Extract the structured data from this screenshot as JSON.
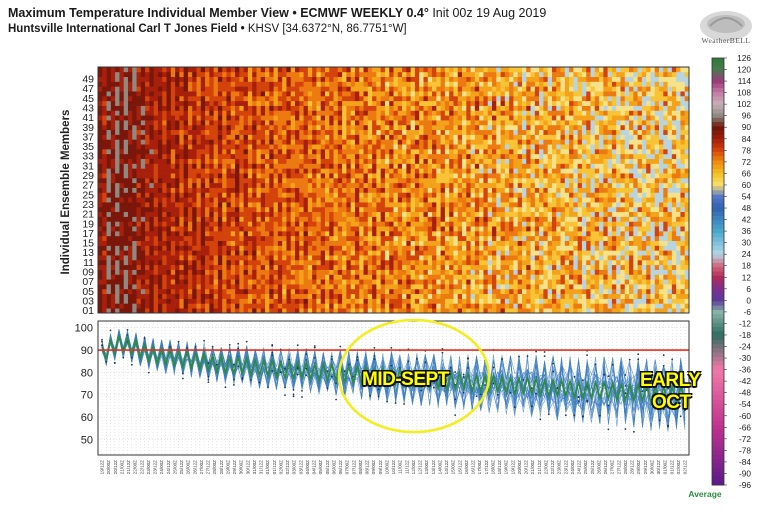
{
  "header": {
    "title_bold": "Maximum Temperature Individual Member View • ECMWF WEEKLY 0.4°",
    "title_init": "Init 00z 19 Aug 2019",
    "station_bold": "Huntsville International Carl T Jones Field •",
    "station_coords": "KHSV [34.6372°N, 86.7751°W]",
    "logo_text": "WeatherBELL"
  },
  "annotations": {
    "mid": "MID-SEPT",
    "early_line1": "EARLY",
    "early_line2": "OCT",
    "circle_color": "#f2ee22"
  },
  "colors": {
    "avg_line": "#2e8b3e",
    "member_lines": "#3a7cc0",
    "threshold": "#e03020"
  },
  "chart_data": [
    {
      "type": "heatmap",
      "ylabel": "Individual Ensemble Members",
      "y_tick_labels": [
        "01",
        "03",
        "05",
        "07",
        "09",
        "11",
        "13",
        "15",
        "17",
        "19",
        "21",
        "23",
        "25",
        "27",
        "29",
        "31",
        "33",
        "35",
        "37",
        "39",
        "41",
        "43",
        "45",
        "47",
        "49"
      ],
      "members": 51,
      "time_steps": 138,
      "value_range": [
        60,
        100
      ],
      "color_scale": {
        "ticks": [
          126,
          120,
          114,
          108,
          102,
          96,
          90,
          84,
          78,
          72,
          66,
          60,
          54,
          48,
          42,
          36,
          30,
          24,
          18,
          12,
          6,
          0,
          -6,
          -12,
          -18,
          -24,
          -30,
          -36,
          -42,
          -48,
          -54,
          -60,
          -66,
          -72,
          -78,
          -84,
          -90,
          -96
        ],
        "label": "Average"
      }
    },
    {
      "type": "line",
      "ylim": [
        43,
        103
      ],
      "y_ticks": [
        100,
        90,
        80,
        70,
        60,
        50
      ],
      "threshold": 90,
      "time_steps": 138,
      "average_series_name": "Average",
      "x_tick_labels": [
        "19/12Z",
        "20/00Z",
        "20/12Z",
        "21/00Z",
        "21/12Z",
        "22/00Z",
        "22/12Z",
        "23/00Z",
        "23/12Z",
        "24/00Z",
        "24/12Z",
        "25/00Z",
        "25/12Z",
        "26/00Z",
        "26/12Z",
        "27/00Z",
        "27/12Z",
        "28/00Z",
        "28/12Z",
        "29/00Z",
        "29/12Z",
        "30/00Z",
        "30/12Z",
        "31/00Z",
        "31/12Z",
        "01/00Z",
        "01/12Z",
        "02/00Z",
        "02/12Z",
        "03/00Z",
        "03/12Z",
        "04/00Z",
        "04/12Z",
        "05/00Z",
        "05/12Z",
        "06/00Z",
        "06/12Z",
        "07/00Z",
        "07/12Z",
        "08/00Z",
        "08/12Z",
        "09/00Z",
        "09/12Z",
        "10/00Z",
        "10/12Z",
        "11/00Z",
        "11/12Z",
        "12/00Z",
        "12/12Z",
        "13/00Z",
        "13/12Z",
        "14/00Z",
        "14/12Z",
        "15/00Z",
        "15/12Z",
        "16/00Z",
        "16/12Z",
        "17/00Z",
        "17/12Z",
        "18/00Z",
        "18/12Z",
        "19/00Z",
        "19/12Z",
        "20/00Z",
        "20/12Z",
        "21/00Z",
        "21/12Z",
        "22/00Z",
        "22/12Z",
        "23/00Z",
        "23/12Z",
        "24/00Z",
        "24/12Z",
        "25/00Z",
        "25/12Z",
        "26/00Z",
        "26/12Z",
        "27/00Z",
        "27/12Z",
        "28/00Z",
        "28/12Z",
        "29/00Z",
        "29/12Z",
        "30/00Z",
        "30/12Z",
        "01/00Z",
        "01/12Z",
        "02/00Z",
        "02/12Z"
      ],
      "average_max_values": [
        88,
        91,
        93,
        92,
        91,
        89,
        88,
        87,
        87,
        86,
        86,
        85,
        85,
        84,
        84,
        83,
        83,
        83,
        82,
        82,
        82,
        81,
        81,
        81,
        81,
        80,
        80,
        80,
        80,
        79,
        79,
        79,
        78,
        78,
        78,
        78,
        77,
        77,
        77,
        77,
        76,
        76,
        76,
        76,
        75,
        75,
        75,
        75,
        74,
        74,
        74,
        74,
        73,
        73,
        73,
        73,
        72,
        72,
        72,
        72,
        72,
        71,
        71,
        71,
        71,
        70,
        70,
        70,
        70,
        70
      ]
    }
  ]
}
